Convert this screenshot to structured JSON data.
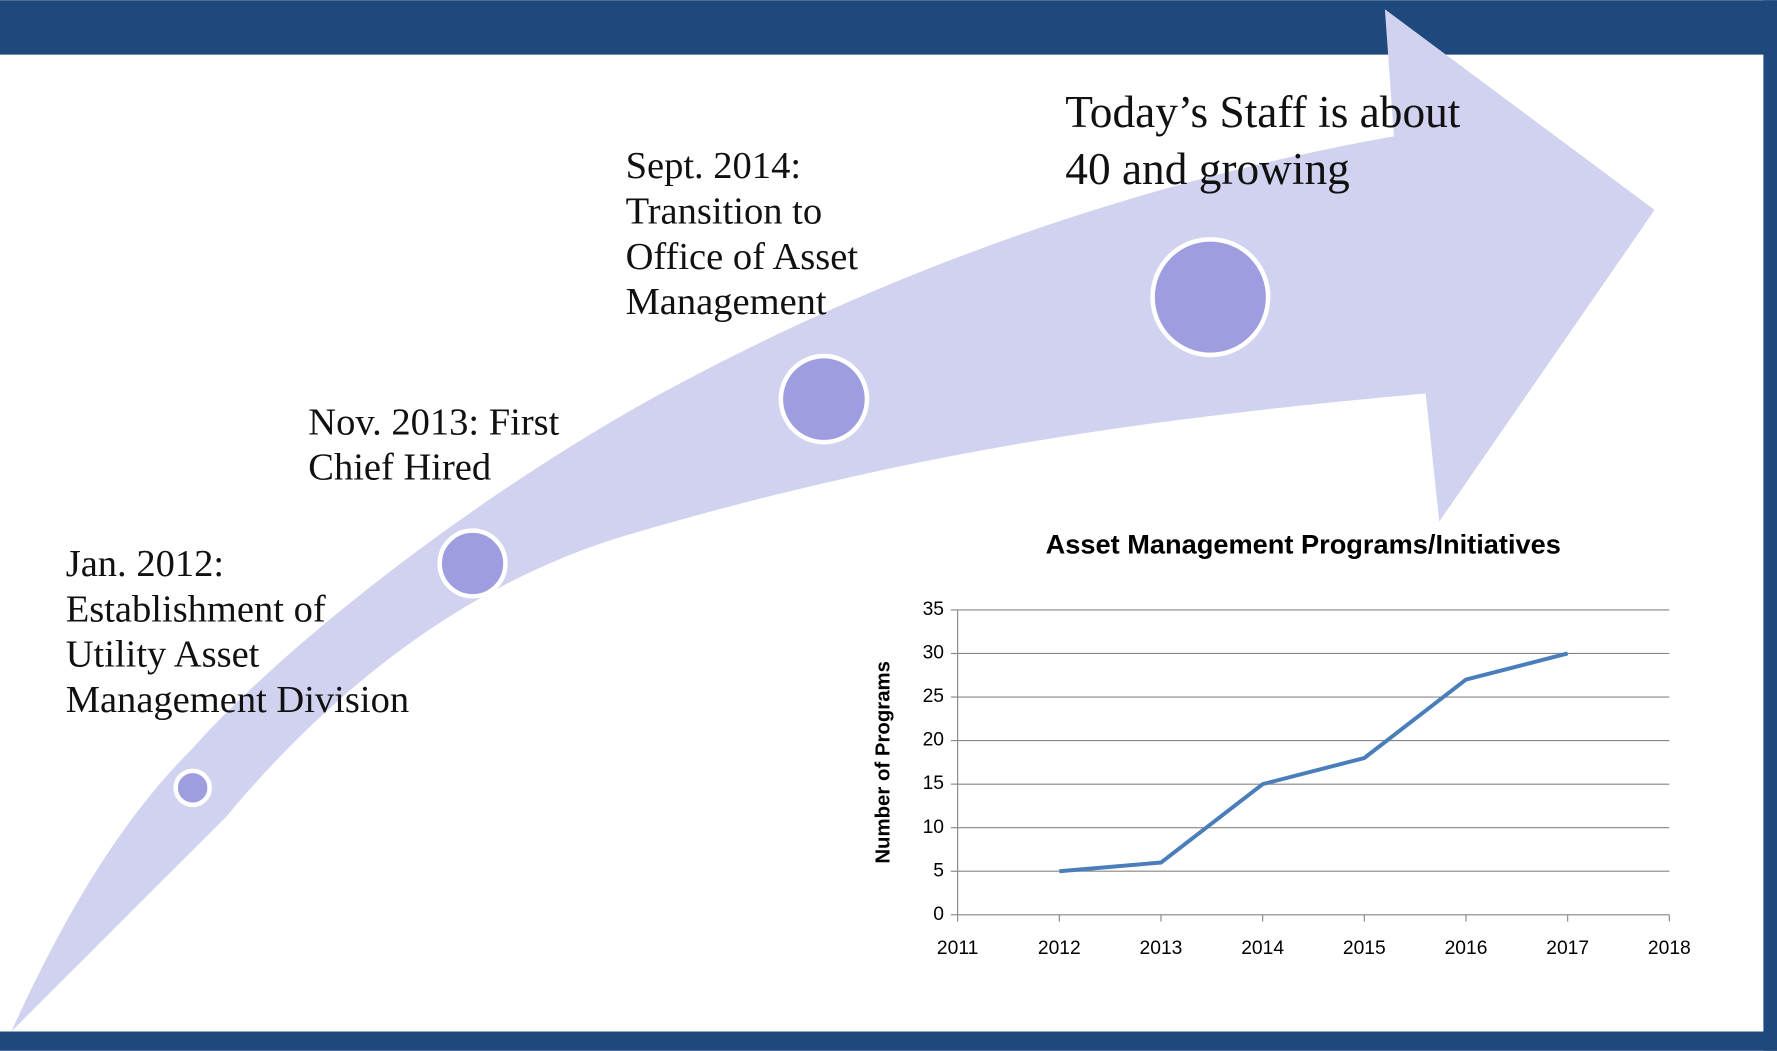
{
  "milestones": [
    {
      "lines": [
        "Jan. 2012:",
        "Establishment of",
        "Utility Asset",
        "Management Division"
      ]
    },
    {
      "lines": [
        "Nov. 2013: First",
        "Chief Hired"
      ]
    },
    {
      "lines": [
        "Sept. 2014:",
        "Transition to",
        "Office of Asset",
        "Management"
      ]
    },
    {
      "lines": [
        "Today’s Staff is about",
        "40 and growing"
      ]
    }
  ],
  "chart_data": {
    "type": "line",
    "title": "Asset Management Programs/Initiatives",
    "ylabel": "Number of Programs",
    "x": [
      2012,
      2013,
      2014,
      2015,
      2016,
      2017
    ],
    "series": [
      {
        "name": "Number of Programs",
        "color": "#4a7ebb",
        "values": [
          5,
          6,
          15,
          18,
          27,
          30
        ]
      }
    ],
    "xlim": [
      2011,
      2018
    ],
    "xticks": [
      2011,
      2012,
      2013,
      2014,
      2015,
      2016,
      2017,
      2018
    ],
    "ylim": [
      0,
      35
    ],
    "yticks": [
      0,
      5,
      10,
      15,
      20,
      25,
      30,
      35
    ],
    "grid": true
  }
}
